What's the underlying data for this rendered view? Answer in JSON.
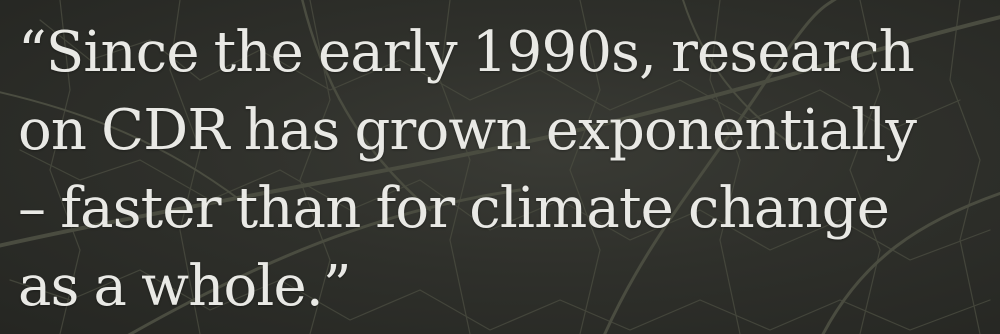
{
  "quote": {
    "lines": [
      "“Since the early 1990s, research",
      "on CDR has grown exponentially",
      "– faster than for climate change",
      "as a whole.”"
    ]
  },
  "colors": {
    "background": "#2e2f2b",
    "text": "#e9e9e5",
    "vein": "#4a4c40"
  }
}
